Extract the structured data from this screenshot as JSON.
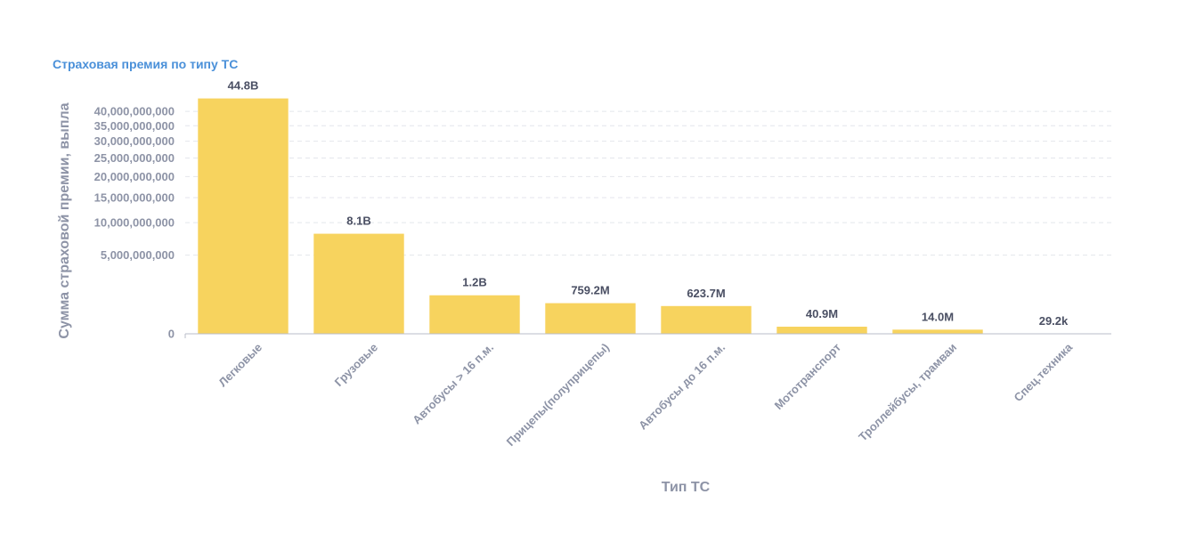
{
  "chart_data": {
    "type": "bar",
    "title": "Страховая премия по типу ТС",
    "xlabel": "Тип ТС",
    "ylabel": "Сумма страховой премии, выпла",
    "y_scale": "sqrt",
    "ylim": [
      0,
      45000000000
    ],
    "yticks": [
      0,
      5000000000,
      10000000000,
      15000000000,
      20000000000,
      25000000000,
      30000000000,
      35000000000,
      40000000000
    ],
    "ytick_labels": [
      "0",
      "5,000,000,000",
      "10,000,000,000",
      "15,000,000,000",
      "20,000,000,000",
      "25,000,000,000",
      "30,000,000,000",
      "35,000,000,000",
      "40,000,000,000"
    ],
    "grid": true,
    "color": "#f7d35e",
    "categories": [
      "Легковые",
      "Грузовые",
      "Автобусы > 16 п.м.",
      "Прицепы(полуприцепы)",
      "Автобусы до 16 п.м.",
      "Мототранспорт",
      "Троллейбусы, трамваи",
      "Спец.техника"
    ],
    "values": [
      44800000000,
      8100000000,
      1200000000,
      759200000,
      623700000,
      40900000,
      14000000,
      29200
    ],
    "data_labels": [
      "44.8B",
      "8.1B",
      "1.2B",
      "759.2M",
      "623.7M",
      "40.9M",
      "14.0M",
      "29.2k"
    ]
  }
}
